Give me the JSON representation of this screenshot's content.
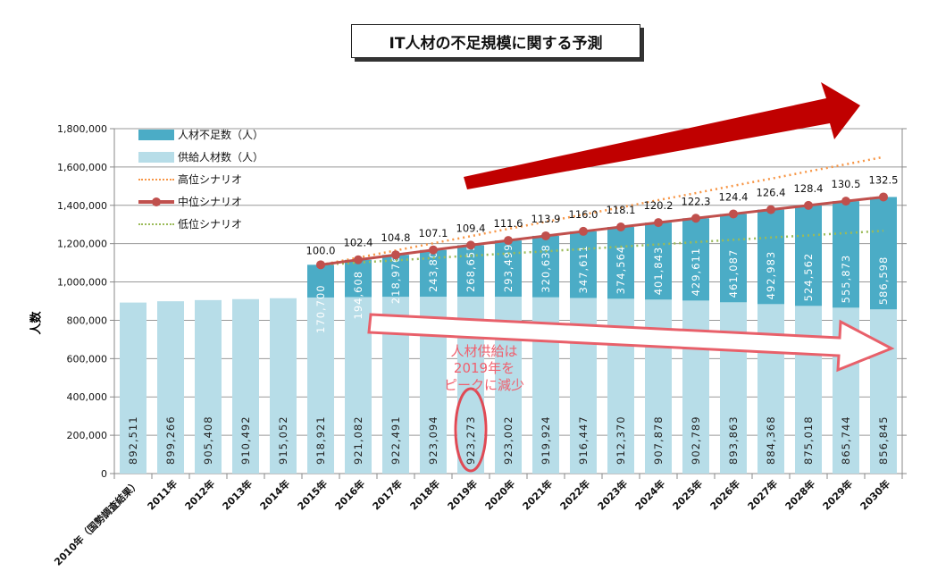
{
  "title": "IT人材の不足規模に関する予測",
  "annotation": [
    "人材供給は",
    "2019年を",
    "ピークに減少"
  ],
  "colors": {
    "shortage": "#4bacc6",
    "supply": "#b7dde8",
    "high": "#f79646",
    "mid": "#c0504d",
    "low": "#9bbb59",
    "arrow_red": "#c00000",
    "annotation": "#f0606e"
  },
  "chart_data": {
    "type": "bar",
    "stacked": true,
    "title": "IT人材の不足規模に関する予測",
    "ylabel": "人数",
    "ylim": [
      0,
      1800000
    ],
    "yticks": [
      "0",
      "200,000",
      "400,000",
      "600,000",
      "800,000",
      "1,000,000",
      "1,200,000",
      "1,400,000",
      "1,600,000",
      "1,800,000"
    ],
    "grid": true,
    "legend_position": "top-left",
    "categories": [
      "2010年（国勢調査結果）",
      "2011年",
      "2012年",
      "2013年",
      "2014年",
      "2015年",
      "2016年",
      "2017年",
      "2018年",
      "2019年",
      "2020年",
      "2021年",
      "2022年",
      "2023年",
      "2024年",
      "2025年",
      "2026年",
      "2027年",
      "2028年",
      "2029年",
      "2030年"
    ],
    "series": [
      {
        "name": "供給人材数（人）",
        "type": "bar",
        "values": [
          892511,
          899266,
          905408,
          910492,
          915052,
          918921,
          921082,
          922491,
          923094,
          923273,
          923002,
          919924,
          916447,
          912370,
          907878,
          902789,
          893863,
          884368,
          875018,
          865744,
          856845
        ],
        "labels": [
          "892,511",
          "899,266",
          "905,408",
          "910,492",
          "915,052",
          "918,921",
          "921,082",
          "922,491",
          "923,094",
          "923,273",
          "923,002",
          "919,924",
          "916,447",
          "912,370",
          "907,878",
          "902,789",
          "893,863",
          "884,368",
          "875,018",
          "865,744",
          "856,845"
        ]
      },
      {
        "name": "人材不足数（人）",
        "type": "bar",
        "values": [
          null,
          null,
          null,
          null,
          null,
          170700,
          194608,
          218976,
          243805,
          268655,
          293499,
          320638,
          347611,
          374564,
          401843,
          429611,
          461087,
          492983,
          524562,
          555873,
          586598
        ],
        "labels": [
          "",
          "",
          "",
          "",
          "",
          "170,700",
          "194,608",
          "218,976",
          "243,805",
          "268,655",
          "293,499",
          "320,638",
          "347,611",
          "374,564",
          "401,843",
          "429,611",
          "461,087",
          "492,983",
          "524,562",
          "555,873",
          "586,598"
        ]
      },
      {
        "name": "高位シナリオ",
        "type": "line",
        "style": "dotted",
        "values": [
          null,
          null,
          null,
          null,
          null,
          1089621,
          1127000,
          1164000,
          1202000,
          1239000,
          1277000,
          1314000,
          1352000,
          1389000,
          1427000,
          1464000,
          1502000,
          1539000,
          1577000,
          1614000,
          1652000
        ]
      },
      {
        "name": "中位シナリオ",
        "type": "line",
        "style": "solid-marker",
        "values": [
          null,
          null,
          null,
          null,
          null,
          1089621,
          1115690,
          1141467,
          1166899,
          1191928,
          1216501,
          1240562,
          1264058,
          1286934,
          1309721,
          1332400,
          1354950,
          1377351,
          1399580,
          1421617,
          1443443
        ],
        "index_labels": [
          "",
          "",
          "",
          "",
          "",
          "100.0",
          "102.4",
          "104.8",
          "107.1",
          "109.4",
          "111.6",
          "113.9",
          "116.0",
          "118.1",
          "120.2",
          "122.3",
          "124.4",
          "126.4",
          "128.4",
          "130.5",
          "132.5"
        ]
      },
      {
        "name": "低位シナリオ",
        "type": "line",
        "style": "dotted",
        "values": [
          null,
          null,
          null,
          null,
          null,
          1089621,
          1101000,
          1113000,
          1125000,
          1137000,
          1149000,
          1160000,
          1172000,
          1184000,
          1196000,
          1208000,
          1220000,
          1232000,
          1243000,
          1255000,
          1267000
        ]
      }
    ]
  }
}
